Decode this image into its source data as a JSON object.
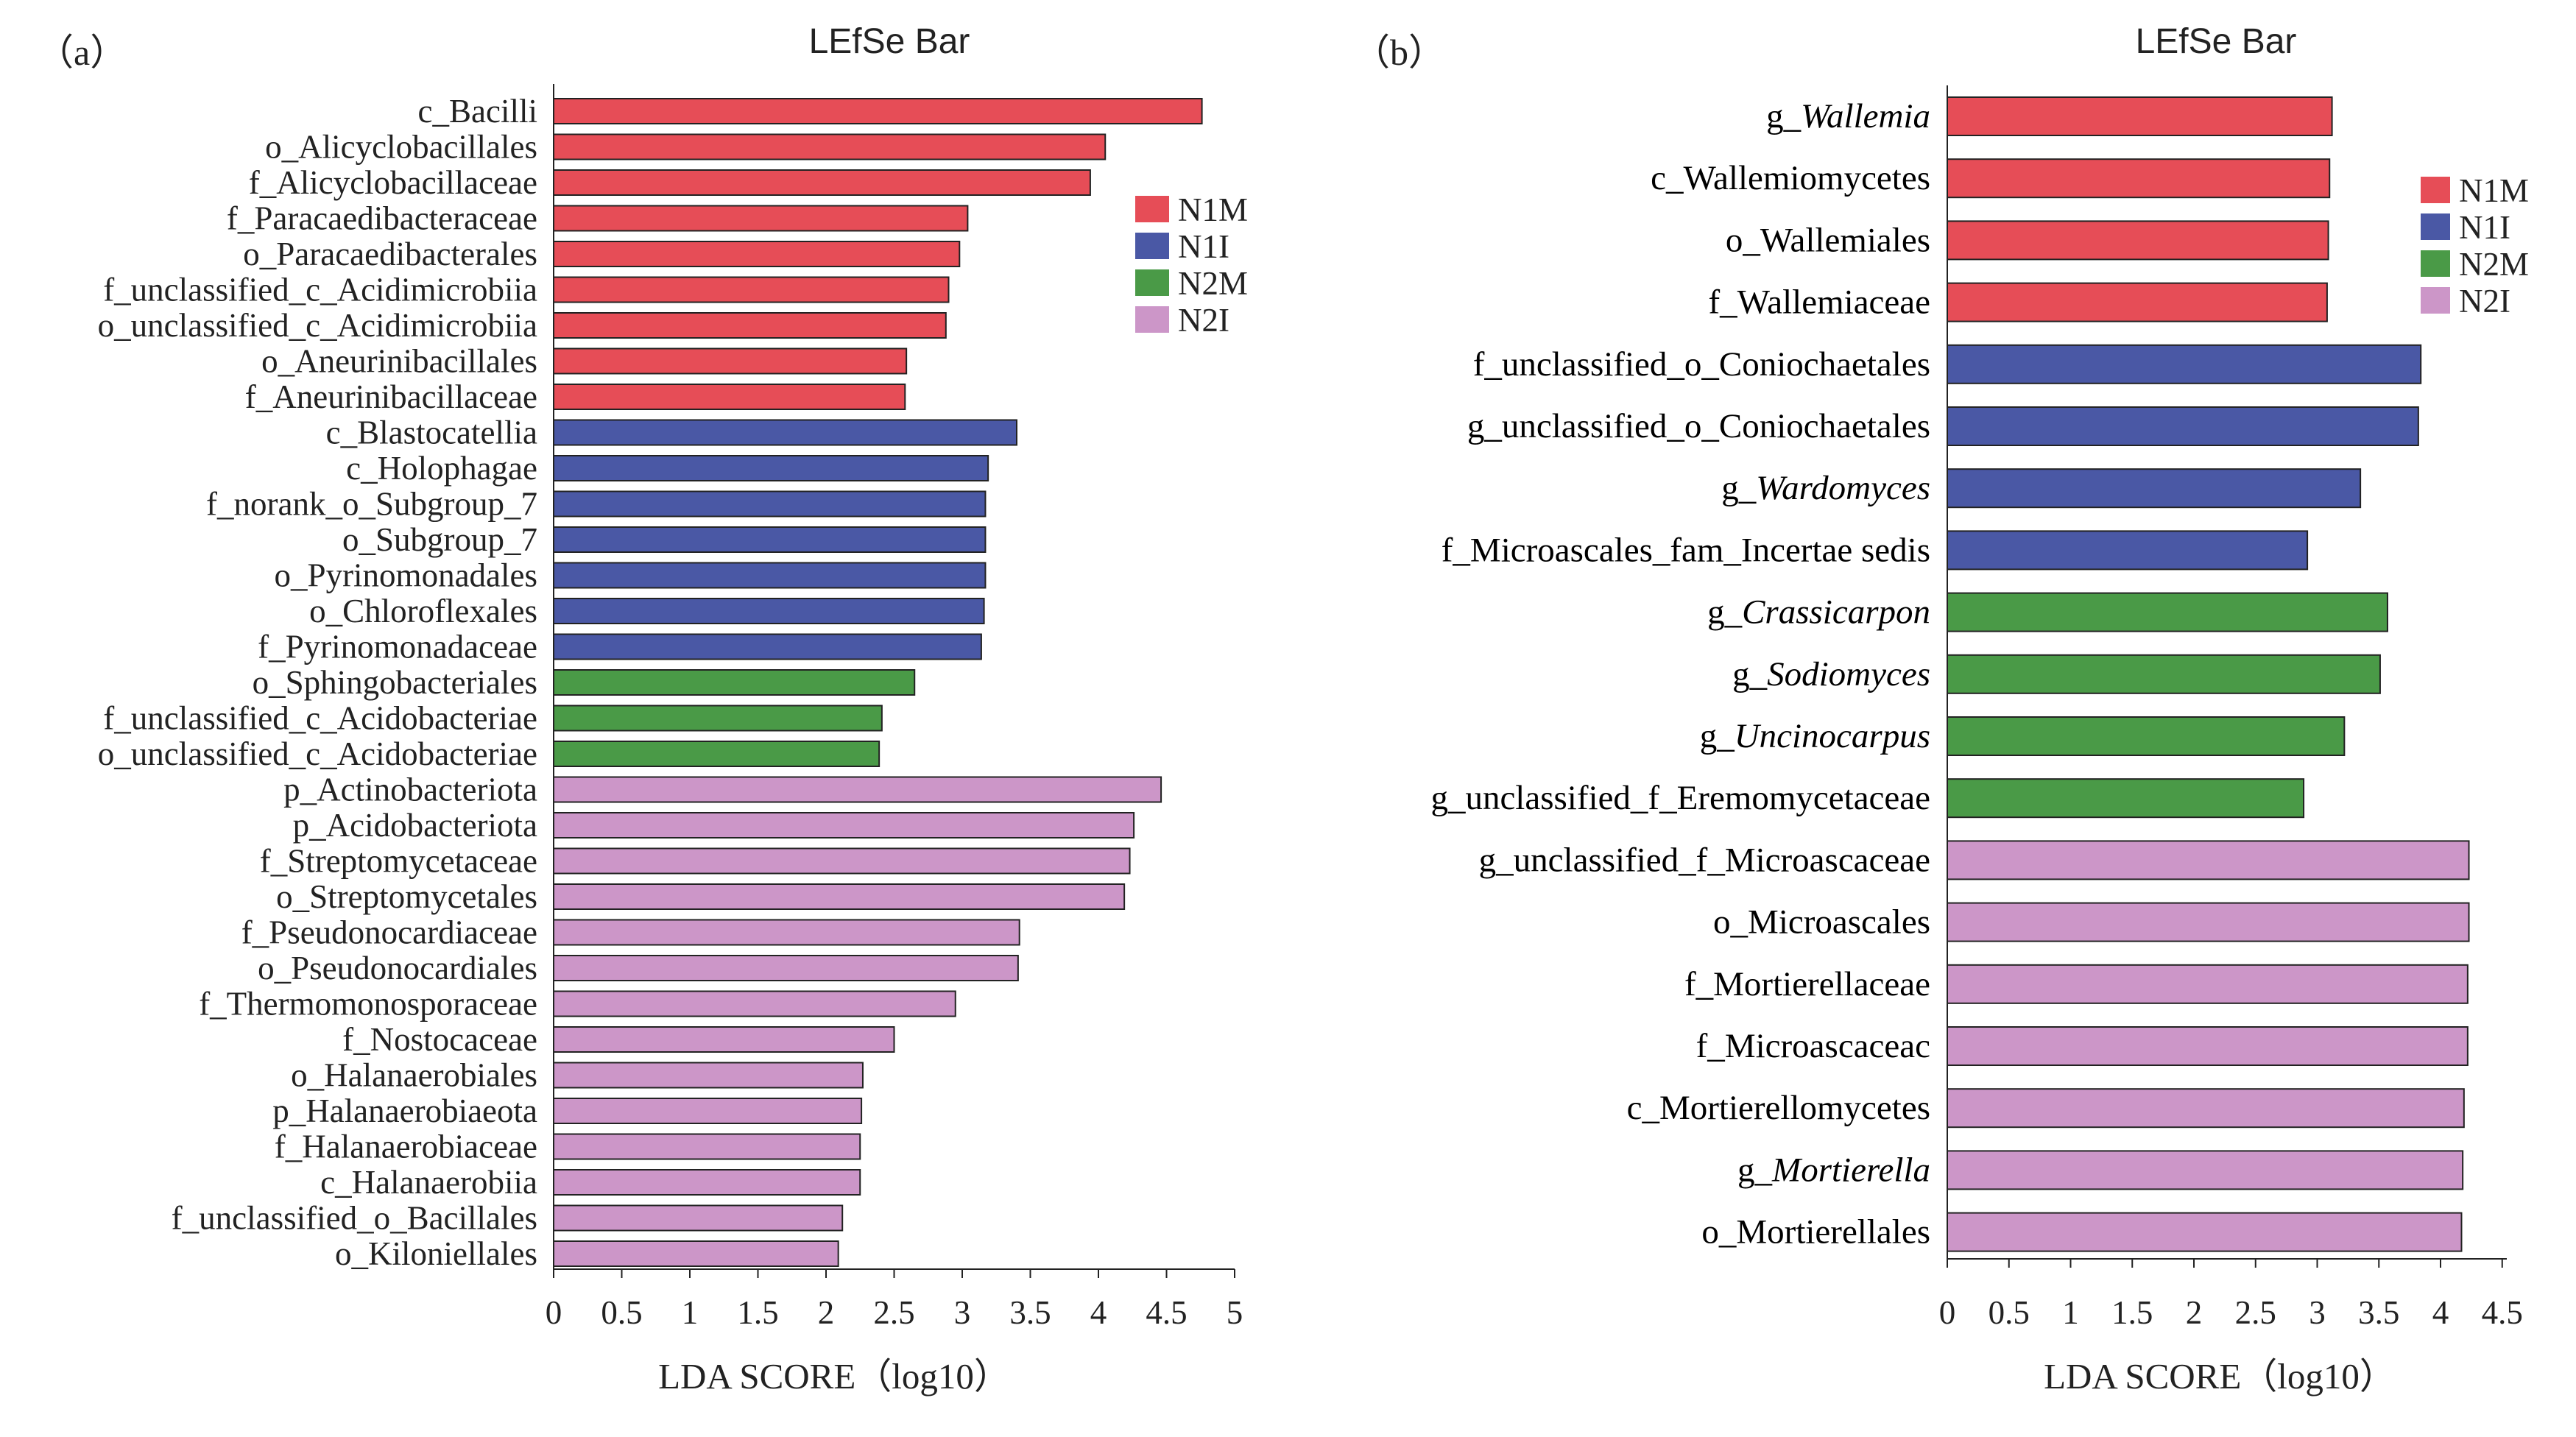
{
  "colors": {
    "N1M": "#e64d57",
    "N1I": "#4a58a5",
    "N2M": "#4a9a47",
    "N2I": "#cc96c8"
  },
  "chart_data": [
    {
      "panel": "（a）",
      "type": "bar",
      "orientation": "horizontal",
      "title": "LEfSe Bar",
      "xlabel": "LDA SCORE（log10）",
      "xlim": [
        0,
        5
      ],
      "xticks": [
        "0",
        "0.5",
        "1",
        "1.5",
        "2",
        "2.5",
        "3",
        "3.5",
        "4",
        "4.5",
        "5"
      ],
      "legend": [
        "N1M",
        "N1I",
        "N2M",
        "N2I"
      ],
      "legend_position": "top-right",
      "bars": [
        {
          "label": "c_Bacilli",
          "value": 4.76,
          "group": "N1M"
        },
        {
          "label": "o_Alicyclobacillales",
          "value": 4.05,
          "group": "N1M"
        },
        {
          "label": "f_Alicyclobacillaceae",
          "value": 3.94,
          "group": "N1M"
        },
        {
          "label": "f_Paracaedibacteraceae",
          "value": 3.04,
          "group": "N1M"
        },
        {
          "label": "o_Paracaedibacterales",
          "value": 2.98,
          "group": "N1M"
        },
        {
          "label": "f_unclassified_c_Acidimicrobiia",
          "value": 2.9,
          "group": "N1M"
        },
        {
          "label": "o_unclassified_c_Acidimicrobiia",
          "value": 2.88,
          "group": "N1M"
        },
        {
          "label": "o_Aneurinibacillales",
          "value": 2.59,
          "group": "N1M"
        },
        {
          "label": "f_Aneurinibacillaceae",
          "value": 2.58,
          "group": "N1M"
        },
        {
          "label": "c_Blastocatellia",
          "value": 3.4,
          "group": "N1I"
        },
        {
          "label": "c_Holophagae",
          "value": 3.19,
          "group": "N1I"
        },
        {
          "label": "f_norank_o_Subgroup_7",
          "value": 3.17,
          "group": "N1I"
        },
        {
          "label": "o_Subgroup_7",
          "value": 3.17,
          "group": "N1I"
        },
        {
          "label": "o_Pyrinomonadales",
          "value": 3.17,
          "group": "N1I"
        },
        {
          "label": "o_Chloroflexales",
          "value": 3.16,
          "group": "N1I"
        },
        {
          "label": "f_Pyrinomonadaceae",
          "value": 3.14,
          "group": "N1I"
        },
        {
          "label": "o_Sphingobacteriales",
          "value": 2.65,
          "group": "N2M"
        },
        {
          "label": "f_unclassified_c_Acidobacteriae",
          "value": 2.41,
          "group": "N2M"
        },
        {
          "label": "o_unclassified_c_Acidobacteriae",
          "value": 2.39,
          "group": "N2M"
        },
        {
          "label": "p_Actinobacteriota",
          "value": 4.46,
          "group": "N2I"
        },
        {
          "label": "p_Acidobacteriota",
          "value": 4.26,
          "group": "N2I"
        },
        {
          "label": "f_Streptomycetaceae",
          "value": 4.23,
          "group": "N2I"
        },
        {
          "label": "o_Streptomycetales",
          "value": 4.19,
          "group": "N2I"
        },
        {
          "label": "f_Pseudonocardiaceae",
          "value": 3.42,
          "group": "N2I"
        },
        {
          "label": "o_Pseudonocardiales",
          "value": 3.41,
          "group": "N2I"
        },
        {
          "label": "f_Thermomonosporaceae",
          "value": 2.95,
          "group": "N2I"
        },
        {
          "label": "f_Nostocaceae",
          "value": 2.5,
          "group": "N2I"
        },
        {
          "label": "o_Halanaerobiales",
          "value": 2.27,
          "group": "N2I"
        },
        {
          "label": "p_Halanaerobiaeota",
          "value": 2.26,
          "group": "N2I"
        },
        {
          "label": "f_Halanaerobiaceae",
          "value": 2.25,
          "group": "N2I"
        },
        {
          "label": "c_Halanaerobiia",
          "value": 2.25,
          "group": "N2I"
        },
        {
          "label": "f_unclassified_o_Bacillales",
          "value": 2.12,
          "group": "N2I"
        },
        {
          "label": "o_Kiloniellales",
          "value": 2.09,
          "group": "N2I"
        }
      ]
    },
    {
      "panel": "（b）",
      "type": "bar",
      "orientation": "horizontal",
      "title": "LEfSe Bar",
      "xlabel": "LDA SCORE（log10）",
      "xlim": [
        0,
        4.5
      ],
      "xticks": [
        "0",
        "0.5",
        "1",
        "1.5",
        "2",
        "2.5",
        "3",
        "3.5",
        "4",
        "4.5"
      ],
      "legend": [
        "N1M",
        "N1I",
        "N2M",
        "N2I"
      ],
      "legend_position": "top-right",
      "bars": [
        {
          "prefix": "g_",
          "name": "Wallemia",
          "italic": true,
          "value": 3.12,
          "group": "N1M"
        },
        {
          "prefix": "c_",
          "name": "Wallemiomycetes",
          "italic": false,
          "value": 3.1,
          "group": "N1M"
        },
        {
          "prefix": "o_",
          "name": "Wallemiales",
          "italic": false,
          "value": 3.09,
          "group": "N1M"
        },
        {
          "prefix": "f_",
          "name": "Wallemiaceae",
          "italic": false,
          "value": 3.08,
          "group": "N1M"
        },
        {
          "prefix": "f_",
          "name": "unclassified_o_Coniochaetales",
          "italic": false,
          "value": 3.84,
          "group": "N1I"
        },
        {
          "prefix": "g_",
          "name": "unclassified_o_Coniochaetales",
          "italic": false,
          "value": 3.82,
          "group": "N1I"
        },
        {
          "prefix": "g_",
          "name": "Wardomyces",
          "italic": true,
          "value": 3.35,
          "group": "N1I"
        },
        {
          "prefix": "f_",
          "name": "Microascales_fam_Incertae sedis",
          "italic": false,
          "value": 2.92,
          "group": "N1I"
        },
        {
          "prefix": "g_",
          "name": "Crassicarpon",
          "italic": true,
          "value": 3.57,
          "group": "N2M"
        },
        {
          "prefix": "g_",
          "name": "Sodiomyces",
          "italic": true,
          "value": 3.51,
          "group": "N2M"
        },
        {
          "prefix": "g_",
          "name": "Uncinocarpus",
          "italic": true,
          "value": 3.22,
          "group": "N2M"
        },
        {
          "prefix": "g_",
          "name": "unclassified_f_Eremomycetaceae",
          "italic": false,
          "value": 2.89,
          "group": "N2M"
        },
        {
          "prefix": "g_",
          "name": "unclassified_f_Microascaceae",
          "italic": false,
          "value": 4.23,
          "group": "N2I"
        },
        {
          "prefix": "o_",
          "name": "Microascales",
          "italic": false,
          "value": 4.23,
          "group": "N2I"
        },
        {
          "prefix": "f_",
          "name": "Mortierellaceae",
          "italic": false,
          "value": 4.22,
          "group": "N2I"
        },
        {
          "prefix": "f_",
          "name": "Microascaceac",
          "italic": false,
          "value": 4.22,
          "group": "N2I"
        },
        {
          "prefix": "c_",
          "name": "Mortierellomycetes",
          "italic": false,
          "value": 4.19,
          "group": "N2I"
        },
        {
          "prefix": "g_",
          "name": "Mortierella",
          "italic": true,
          "value": 4.18,
          "group": "N2I"
        },
        {
          "prefix": "o_",
          "name": "Mortierellales",
          "italic": false,
          "value": 4.17,
          "group": "N2I"
        }
      ]
    }
  ]
}
